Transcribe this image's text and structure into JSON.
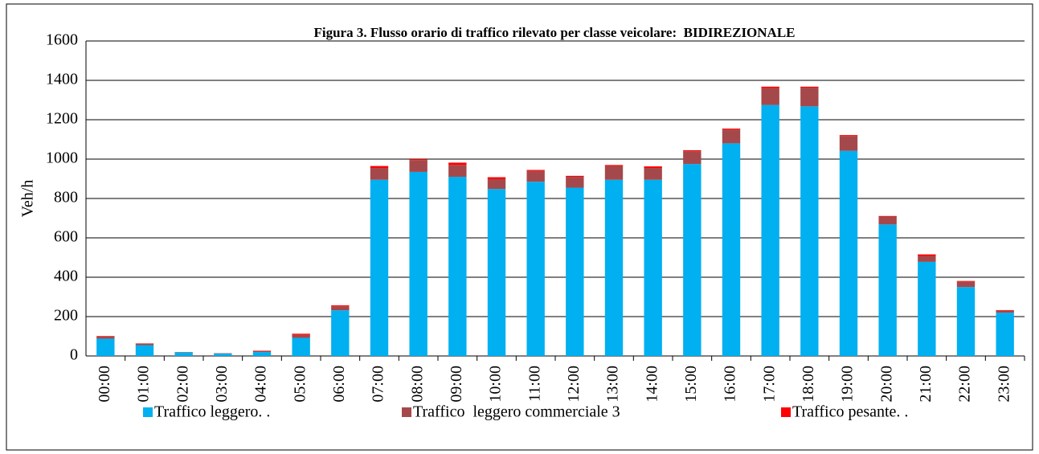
{
  "chart_data": {
    "type": "stacked_bar",
    "title": "Figura 3. Flusso orario di traffico rilevato per classe veicolare:  BIDIREZIONALE",
    "y_label": "Veh/h",
    "categories": [
      "00:00",
      "01:00",
      "02:00",
      "03:00",
      "04:00",
      "05:00",
      "06:00",
      "07:00",
      "08:00",
      "09:00",
      "10:00",
      "11:00",
      "12:00",
      "13:00",
      "14:00",
      "15:00",
      "16:00",
      "17:00",
      "18:00",
      "19:00",
      "20:00",
      "21:00",
      "22:00",
      "23:00"
    ],
    "series": [
      {
        "name": "Traffico leggero. .",
        "color": "#00b0f0",
        "values": [
          88,
          55,
          18,
          12,
          20,
          92,
          232,
          895,
          935,
          910,
          848,
          885,
          855,
          895,
          895,
          975,
          1080,
          1275,
          1268,
          1042,
          668,
          478,
          350,
          220
        ]
      },
      {
        "name": "Traffico  leggero commerciale 3",
        "color": "#a5484b",
        "values": [
          10,
          7,
          2,
          2,
          5,
          15,
          20,
          60,
          60,
          60,
          50,
          55,
          55,
          70,
          60,
          65,
          70,
          85,
          95,
          75,
          40,
          30,
          28,
          10
        ]
      },
      {
        "name": "Traffico pesante. .",
        "color": "#ff0000",
        "values": [
          3,
          2,
          0,
          0,
          2,
          6,
          5,
          10,
          5,
          12,
          10,
          5,
          5,
          5,
          8,
          5,
          5,
          8,
          5,
          5,
          3,
          8,
          3,
          3
        ]
      }
    ],
    "ylim": [
      0,
      1600
    ],
    "yticks": [
      0,
      200,
      400,
      600,
      800,
      1000,
      1200,
      1400,
      1600
    ],
    "grid": true,
    "legend": "bottom"
  }
}
